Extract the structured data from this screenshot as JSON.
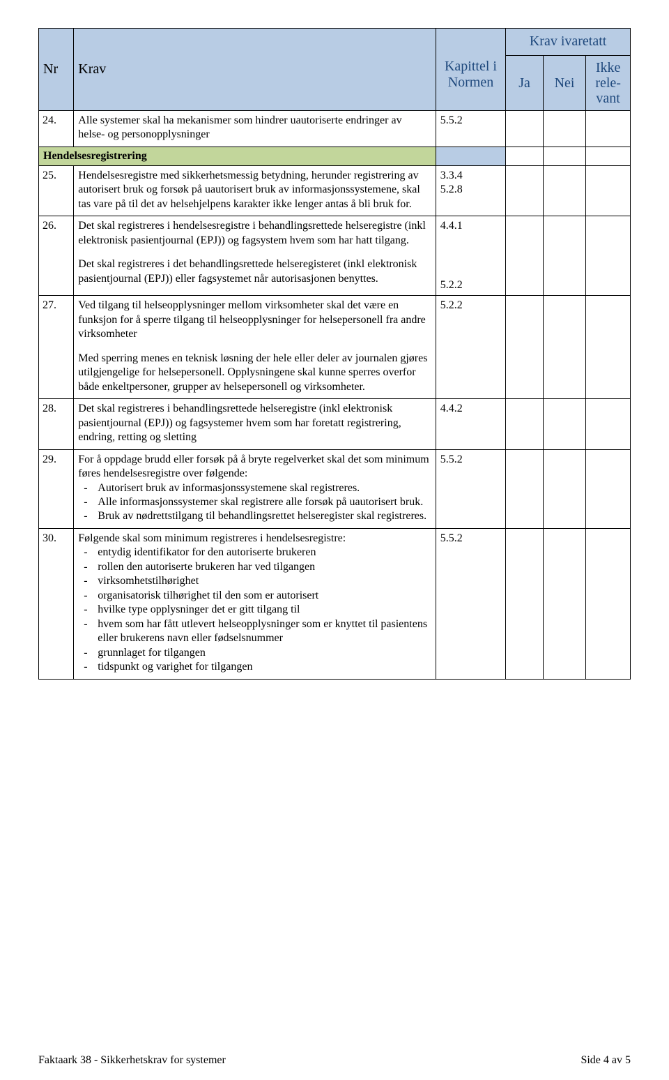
{
  "header": {
    "nr": "Nr",
    "krav": "Krav",
    "kapittel": "Kapittel i Normen",
    "ivaretatt": "Krav ivaretatt",
    "ja": "Ja",
    "nei": "Nei",
    "ikke_relevant": "Ikke rele-vant"
  },
  "colors": {
    "header_bg": "#b8cce4",
    "header_text": "#1f497d",
    "section_bg": "#c2d69b"
  },
  "rows": [
    {
      "nr": "24.",
      "krav_html": "Alle systemer skal ha mekanismer som hindrer uautoriserte endringer av helse- og personopplysninger",
      "kap": "5.5.2"
    }
  ],
  "section": {
    "title": "Hendelsesregistrering"
  },
  "rows2": [
    {
      "nr": "25.",
      "krav_html": "Hendelsesregistre med sikkerhetsmessig betydning, herunder registrering av autorisert bruk og forsøk på uautorisert bruk av informasjonssystemene, skal tas vare på til det av helsehjelpens karakter ikke lenger antas å bli bruk for.",
      "kap": [
        "3.3.4",
        "5.2.8"
      ]
    },
    {
      "nr": "26.",
      "krav_p1": "Det skal registreres i hendelsesregistre i behandlingsrettede helseregistre (inkl elektronisk pasientjournal (EPJ)) og fagsystem hvem som har hatt tilgang.",
      "krav_p2": "Det skal registreres i det behandlingsrettede helseregisteret (inkl elektronisk pasientjournal (EPJ)) eller fagsystemet når autorisasjonen benyttes.",
      "kap_p1": "4.4.1",
      "kap_p2": "5.2.2"
    },
    {
      "nr": "27.",
      "krav_p1": "Ved tilgang til helseopplysninger mellom virksomheter skal det være en funksjon for å sperre tilgang til helseopplysninger for helsepersonell fra andre virksomheter",
      "krav_p2": "Med sperring menes en teknisk løsning der hele eller deler av journalen gjøres utilgjengelige for helsepersonell. Opplysningene skal kunne sperres overfor både enkeltpersoner, grupper av helsepersonell og virksomheter.",
      "kap": "5.2.2"
    },
    {
      "nr": "28.",
      "krav_html": "Det skal registreres i behandlingsrettede helseregistre (inkl elektronisk pasientjournal (EPJ)) og fagsystemer hvem som har foretatt registrering, endring, retting og sletting",
      "kap": "4.4.2"
    },
    {
      "nr": "29.",
      "krav_intro": "For å oppdage brudd eller forsøk på å bryte regelverket skal det som minimum føres hendelsesregistre over følgende:",
      "items": [
        "Autorisert bruk av informasjonssystemene skal registreres.",
        "Alle informasjonssystemer skal registrere alle forsøk på uautorisert bruk.",
        "Bruk av nødrettstilgang til behandlingsrettet helseregister skal registreres."
      ],
      "kap": "5.5.2"
    },
    {
      "nr": "30.",
      "krav_intro": "Følgende skal som minimum registreres i hendelsesregistre:",
      "items": [
        "entydig identifikator for den autoriserte brukeren",
        "rollen den autoriserte brukeren har ved tilgangen",
        "virksomhetstilhørighet",
        "organisatorisk tilhørighet til den som er autorisert",
        "hvilke type opplysninger det er gitt tilgang til",
        "hvem som har fått utlevert helseopplysninger som er knyttet til pasientens eller brukerens navn eller fødselsnummer",
        "grunnlaget for tilgangen",
        "tidspunkt og varighet for tilgangen"
      ],
      "kap": "5.5.2"
    }
  ],
  "footer": {
    "left": "Faktaark 38 - Sikkerhetskrav for systemer",
    "right": "Side 4 av 5"
  }
}
